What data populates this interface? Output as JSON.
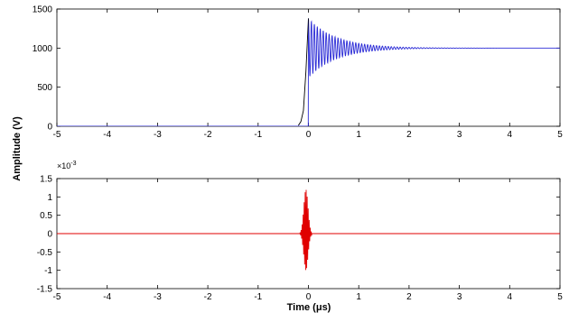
{
  "chart_data": [
    {
      "type": "line",
      "xlabel": "",
      "ylabel": "Amplitude (V)",
      "xlim": [
        -5,
        5
      ],
      "ylim": [
        0,
        1500
      ],
      "xticks": [
        -5,
        -4,
        -3,
        -2,
        -1,
        0,
        1,
        2,
        3,
        4,
        5
      ],
      "yticks": [
        0,
        500,
        1000,
        1500
      ],
      "grid": false,
      "series": [
        {
          "color": "#2a2ad6",
          "style": "solid",
          "function": "damped_step",
          "baseline": 0,
          "step_start": -0.2,
          "step_end": 0,
          "final_value": 1000,
          "initial_overshoot": 380,
          "decay_time_us": 0.55,
          "ringing_frequency_mhz": 17
        },
        {
          "color": "#000000",
          "style": "solid",
          "function": "rise_segment",
          "x": [
            -0.2,
            -0.15,
            -0.1,
            -0.05,
            0
          ],
          "y": [
            10,
            60,
            200,
            700,
            1380
          ]
        }
      ]
    },
    {
      "type": "line",
      "xlabel": "Time (μs)",
      "ylabel": "",
      "xlim": [
        -5,
        5
      ],
      "ylim": [
        -1.5,
        1.5
      ],
      "y_scale_label": "×10^-3",
      "xticks": [
        -5,
        -4,
        -3,
        -2,
        -1,
        0,
        1,
        2,
        3,
        4,
        5
      ],
      "yticks": [
        -1.5,
        -1,
        -0.5,
        0,
        0.5,
        1,
        1.5
      ],
      "grid": false,
      "series": [
        {
          "color": "#e00000",
          "style": "solid",
          "function": "pulse_burst",
          "baseline": 0,
          "center": -0.05,
          "peak_amplitude": 1.2,
          "min_amplitude": -1.0,
          "width_us": 0.12
        }
      ]
    }
  ]
}
